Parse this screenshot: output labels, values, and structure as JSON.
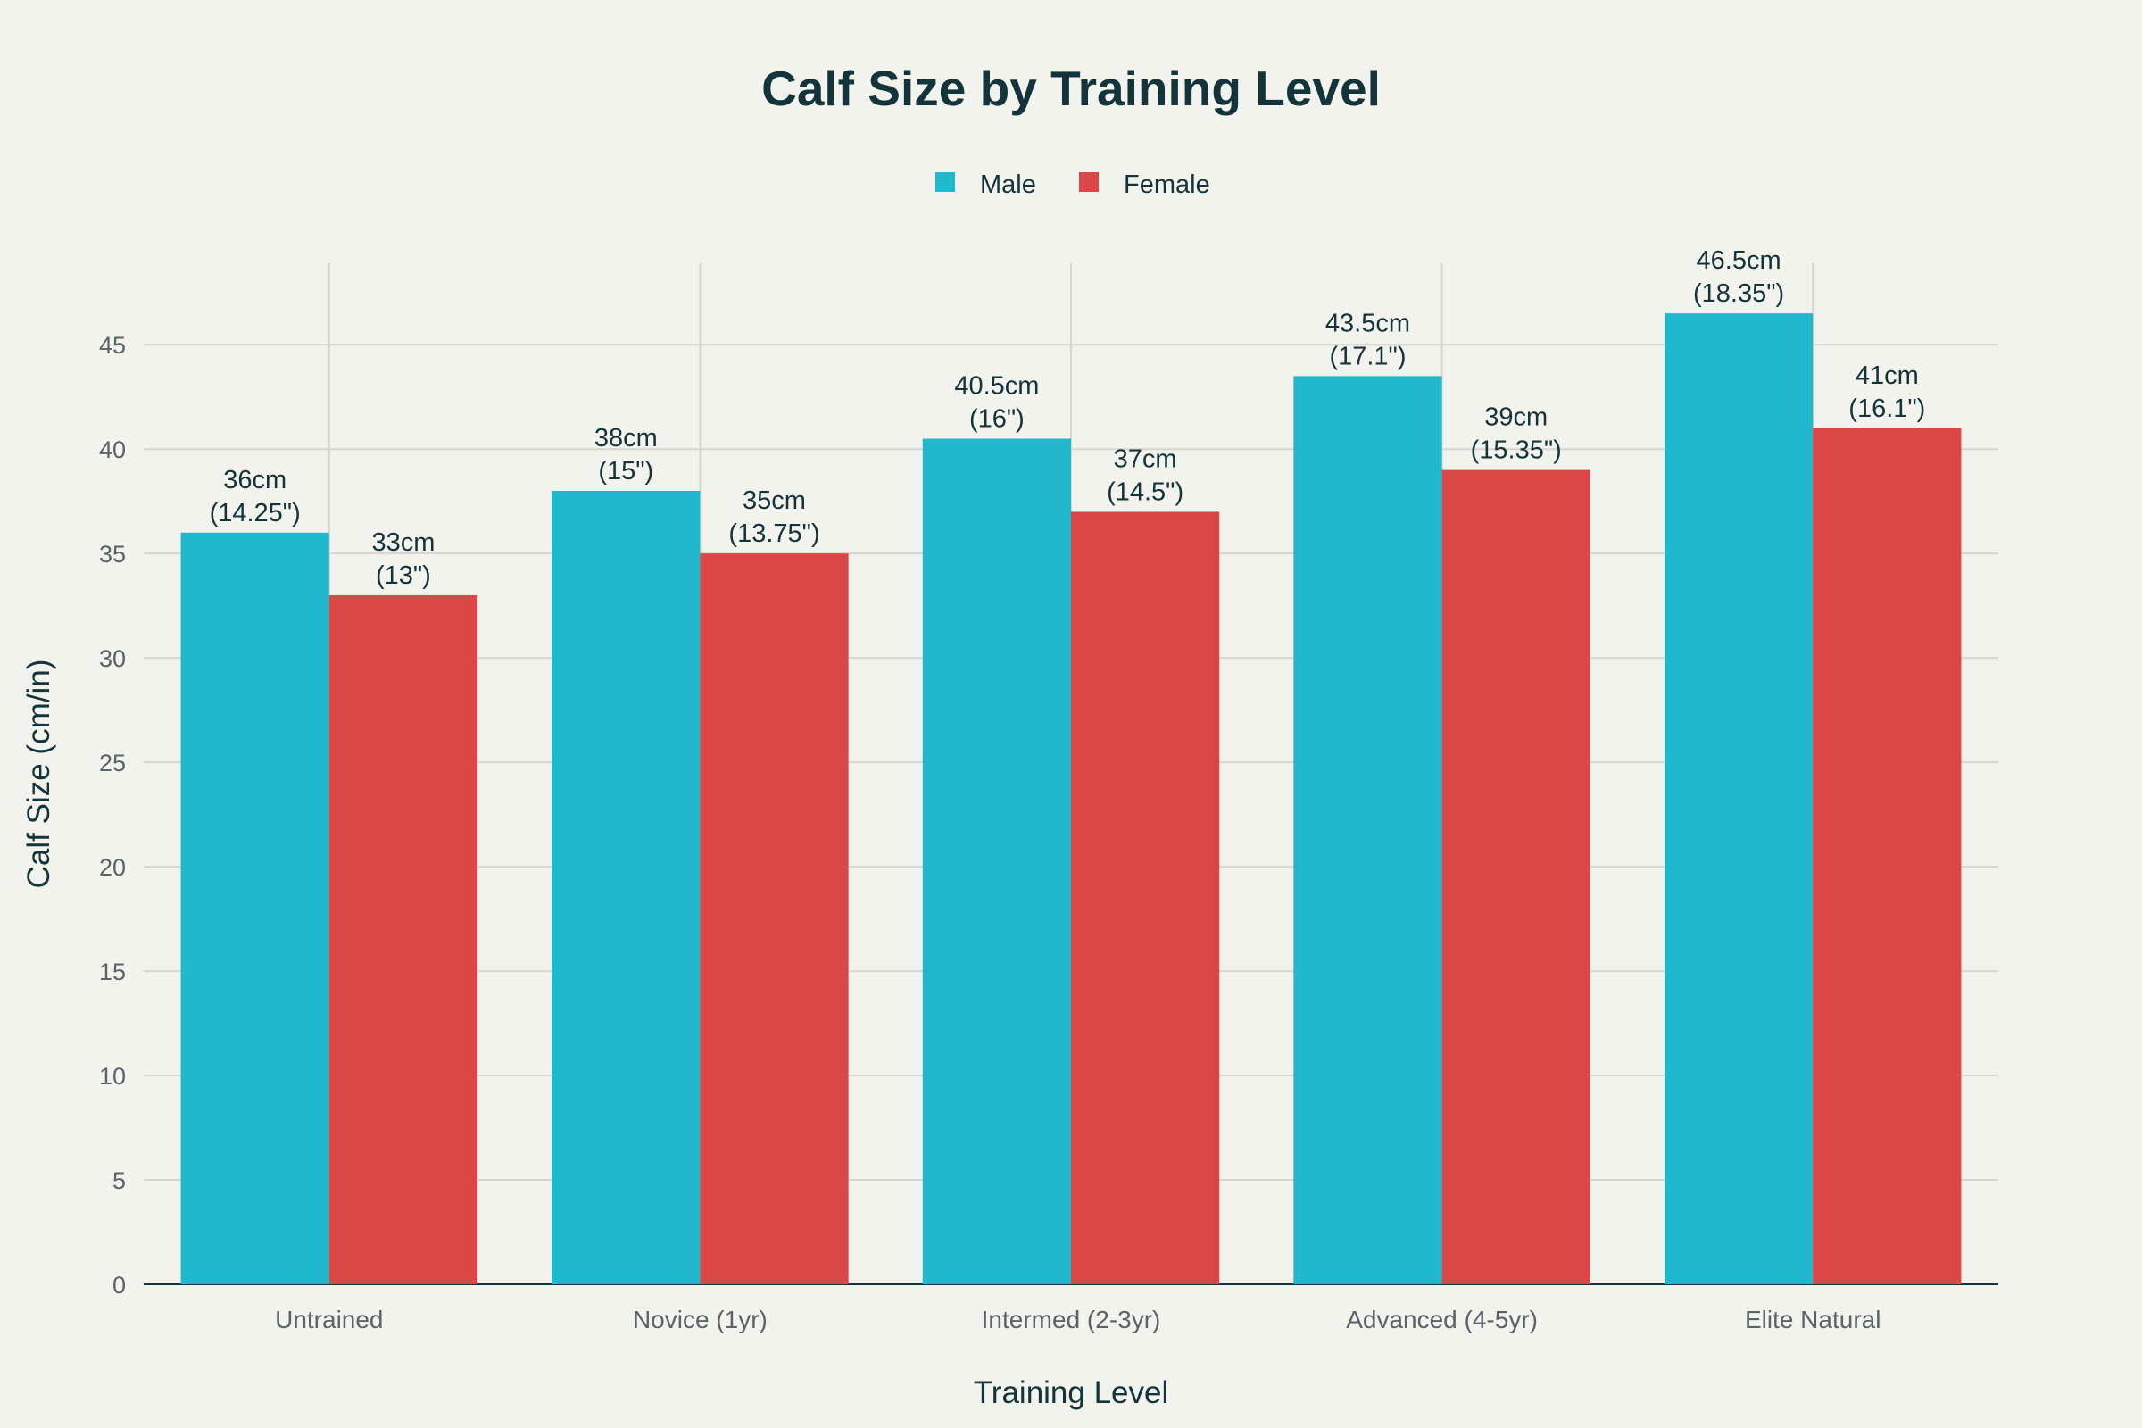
{
  "chart_data": {
    "type": "bar",
    "title": "Calf Size by Training Level",
    "xlabel": "Training Level",
    "ylabel": "Calf Size (cm/in)",
    "categories": [
      "Untrained",
      "Novice (1yr)",
      "Intermed (2-3yr)",
      "Advanced (4-5yr)",
      "Elite Natural"
    ],
    "ylim": [
      0,
      48.9
    ],
    "yticks": [
      0,
      5,
      10,
      15,
      20,
      25,
      30,
      35,
      40,
      45
    ],
    "grid": true,
    "legend_position": "top-center",
    "series": [
      {
        "name": "Male",
        "color": "#21b8cd",
        "values": [
          36,
          38,
          40.5,
          43.5,
          46.5
        ],
        "labels": [
          [
            "36cm",
            "(14.25\")"
          ],
          [
            "38cm",
            "(15\")"
          ],
          [
            "40.5cm",
            "(16\")"
          ],
          [
            "43.5cm",
            "(17.1\")"
          ],
          [
            "46.5cm",
            "(18.35\")"
          ]
        ]
      },
      {
        "name": "Female",
        "color": "#db4647",
        "values": [
          33,
          35,
          37,
          39,
          41
        ],
        "labels": [
          [
            "33cm",
            "(13\")"
          ],
          [
            "35cm",
            "(13.75\")"
          ],
          [
            "37cm",
            "(14.5\")"
          ],
          [
            "39cm",
            "(15.35\")"
          ],
          [
            "41cm",
            "(16.1\")"
          ]
        ]
      }
    ]
  }
}
